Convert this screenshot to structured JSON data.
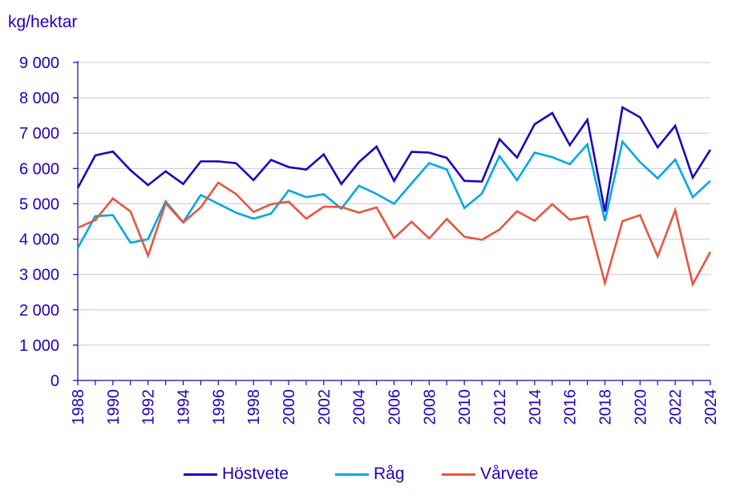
{
  "chart_data": {
    "type": "line",
    "ylabel": "kg/hektar",
    "xlabel": "",
    "title": "",
    "ylim": [
      0,
      9000
    ],
    "yticks": [
      0,
      1000,
      2000,
      3000,
      4000,
      5000,
      6000,
      7000,
      8000,
      9000
    ],
    "ytick_labels": [
      "0",
      "1 000",
      "2 000",
      "3 000",
      "4 000",
      "5 000",
      "6 000",
      "7 000",
      "8 000",
      "9 000"
    ],
    "xlim": [
      1988,
      2024
    ],
    "xtick_labels": [
      "1988",
      "1990",
      "1992",
      "1994",
      "1996",
      "1998",
      "2000",
      "2002",
      "2004",
      "2006",
      "2008",
      "2010",
      "2012",
      "2014",
      "2016",
      "2018",
      "2020",
      "2022",
      "2024"
    ],
    "x": [
      1988,
      1989,
      1990,
      1991,
      1992,
      1993,
      1994,
      1995,
      1996,
      1997,
      1998,
      1999,
      2000,
      2001,
      2002,
      2003,
      2004,
      2005,
      2006,
      2007,
      2008,
      2009,
      2010,
      2011,
      2012,
      2013,
      2014,
      2015,
      2016,
      2017,
      2018,
      2019,
      2020,
      2021,
      2022,
      2023,
      2024
    ],
    "grid": true,
    "legend_position": "bottom",
    "series": [
      {
        "name": "Höstvete",
        "color": "#1e00be",
        "values": [
          5450,
          6370,
          6480,
          5950,
          5530,
          5920,
          5560,
          6200,
          6200,
          6150,
          5670,
          6240,
          6040,
          5970,
          6400,
          5560,
          6180,
          6620,
          5650,
          6470,
          6450,
          6300,
          5650,
          5630,
          6830,
          6310,
          7250,
          7570,
          6660,
          7380,
          4780,
          7730,
          7450,
          6600,
          7210,
          5740,
          6530
        ]
      },
      {
        "name": "Råg",
        "color": "#00a8e0",
        "values": [
          3750,
          4650,
          4680,
          3900,
          4000,
          5070,
          4480,
          5250,
          5000,
          4750,
          4580,
          4720,
          5380,
          5190,
          5270,
          4860,
          5510,
          5280,
          5000,
          5580,
          6150,
          5970,
          4880,
          5290,
          6350,
          5670,
          6450,
          6320,
          6120,
          6680,
          4520,
          6760,
          6180,
          5720,
          6250,
          5190,
          5650
        ]
      },
      {
        "name": "Vårvete",
        "color": "#e8553e",
        "values": [
          4320,
          4540,
          5150,
          4780,
          3530,
          5020,
          4470,
          4900,
          5600,
          5280,
          4770,
          4990,
          5060,
          4580,
          4920,
          4910,
          4750,
          4900,
          4030,
          4490,
          4020,
          4570,
          4070,
          3980,
          4270,
          4790,
          4520,
          4990,
          4550,
          4640,
          2760,
          4510,
          4680,
          3510,
          4820,
          2720,
          3640
        ]
      }
    ]
  },
  "colors": {
    "text": "#1e00be",
    "grid": "#c9c6ea",
    "axis": "#1e00be"
  }
}
